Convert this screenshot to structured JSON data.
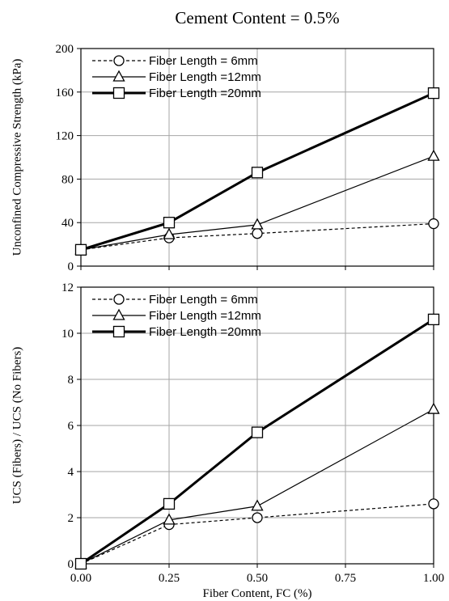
{
  "figure": {
    "title": "Cement Content = 0.5%",
    "xlabel": "Fiber Content, FC (%)"
  },
  "chart_data": [
    {
      "type": "line",
      "title": "Cement Content = 0.5%",
      "xlabel": "",
      "ylabel": "Unconfined Compressive Strength (kPa)",
      "x": [
        0.0,
        0.25,
        0.5,
        1.0
      ],
      "xlim": [
        0,
        1
      ],
      "ylim": [
        0,
        200
      ],
      "yticks": [
        0,
        40,
        80,
        120,
        160,
        200
      ],
      "ytick_labels": [
        "0",
        "40",
        "80",
        "120",
        "160",
        "200"
      ],
      "grid": true,
      "legend_position": "top-left",
      "series": [
        {
          "name": "Fiber Length = 6mm",
          "values": [
            15,
            26,
            30,
            39
          ],
          "marker": "circle",
          "style": "dashed",
          "color": "#000000"
        },
        {
          "name": "Fiber Length =12mm",
          "values": [
            15,
            29,
            38,
            101
          ],
          "marker": "triangle",
          "style": "thin",
          "color": "#000000"
        },
        {
          "name": "Fiber Length =20mm",
          "values": [
            15,
            40,
            86,
            159
          ],
          "marker": "square",
          "style": "thick",
          "color": "#000000"
        }
      ]
    },
    {
      "type": "line",
      "title": "",
      "xlabel": "Fiber Content, FC (%)",
      "ylabel": "UCS (Fibers) / UCS (No Fibers)",
      "x": [
        0.0,
        0.25,
        0.5,
        1.0
      ],
      "xlim": [
        0,
        1
      ],
      "ylim": [
        0,
        12
      ],
      "xticks": [
        0,
        0.25,
        0.5,
        0.75,
        1.0
      ],
      "xtick_labels": [
        "0.00",
        "0.25",
        "0.50",
        "0.75",
        "1.00"
      ],
      "yticks": [
        0,
        2,
        4,
        6,
        8,
        10,
        12
      ],
      "ytick_labels": [
        "0",
        "2",
        "4",
        "6",
        "8",
        "10",
        "12"
      ],
      "grid": true,
      "legend_position": "top-left",
      "series": [
        {
          "name": "Fiber Length = 6mm",
          "values": [
            0,
            1.7,
            2.0,
            2.6
          ],
          "marker": "circle",
          "style": "dashed",
          "color": "#000000"
        },
        {
          "name": "Fiber Length =12mm",
          "values": [
            0,
            1.9,
            2.5,
            6.7
          ],
          "marker": "triangle",
          "style": "thin",
          "color": "#000000"
        },
        {
          "name": "Fiber Length =20mm",
          "values": [
            0,
            2.6,
            5.7,
            10.6
          ],
          "marker": "square",
          "style": "thick",
          "color": "#000000"
        }
      ]
    }
  ]
}
